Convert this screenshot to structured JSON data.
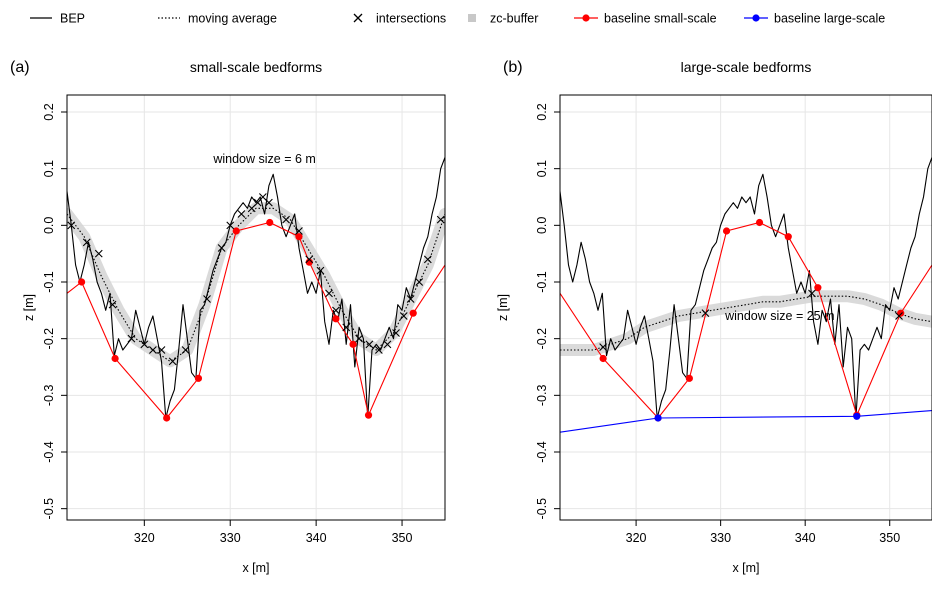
{
  "legend": [
    {
      "key": "bep",
      "label": "BEP",
      "symbol": "line",
      "color": "#000000"
    },
    {
      "key": "ma",
      "label": "moving average",
      "symbol": "dotted",
      "color": "#000000"
    },
    {
      "key": "int",
      "label": "intersections",
      "symbol": "cross",
      "color": "#000000"
    },
    {
      "key": "zc",
      "label": "zc-buffer",
      "symbol": "square",
      "color": "#c8c8c8"
    },
    {
      "key": "bss",
      "label": "baseline small-scale",
      "symbol": "dot-line",
      "color": "#ff0000"
    },
    {
      "key": "bls",
      "label": "baseline large-scale",
      "symbol": "dot-line",
      "color": "#0000ff"
    }
  ],
  "colors": {
    "bep": "#000000",
    "moving_average": "#000000",
    "zc_buffer": "#d3d3d3",
    "baseline_small": "#ff0000",
    "baseline_large": "#0000ff",
    "grid": "#e6e6e6"
  },
  "chart_data": [
    {
      "type": "line",
      "panel_label": "(a)",
      "title": "small-scale bedforms",
      "xlabel": "x [m]",
      "ylabel": "z [m]",
      "xlim": [
        311,
        355
      ],
      "ylim": [
        -0.52,
        0.23
      ],
      "xticks": [
        320,
        330,
        340,
        350
      ],
      "yticks": [
        0.2,
        0.1,
        0.0,
        -0.1,
        -0.2,
        -0.3,
        -0.4,
        -0.5
      ],
      "grid": true,
      "annotation": {
        "text": "window size = 6 m",
        "x": 334,
        "y": 0.11
      },
      "series": [
        {
          "name": "BEP",
          "x": [
            311.0,
            311.5,
            312.0,
            312.5,
            313.0,
            313.5,
            314.0,
            314.5,
            315.0,
            315.5,
            316.0,
            316.5,
            317.0,
            317.5,
            318.0,
            318.5,
            319.0,
            319.5,
            320.0,
            320.5,
            321.0,
            321.5,
            322.0,
            322.5,
            323.0,
            323.5,
            324.0,
            324.5,
            325.0,
            325.5,
            326.0,
            326.5,
            327.0,
            327.5,
            328.0,
            328.5,
            329.0,
            329.5,
            330.0,
            330.5,
            331.0,
            331.5,
            332.0,
            332.5,
            333.0,
            333.5,
            334.0,
            334.5,
            335.0,
            335.5,
            336.0,
            336.5,
            337.0,
            337.5,
            338.0,
            338.5,
            339.0,
            339.5,
            340.0,
            340.5,
            341.0,
            341.5,
            342.0,
            342.5,
            343.0,
            343.5,
            344.0,
            344.5,
            345.0,
            345.5,
            346.0,
            346.5,
            347.0,
            347.5,
            348.0,
            348.5,
            349.0,
            349.5,
            350.0,
            350.5,
            351.0,
            351.5,
            352.0,
            352.5,
            353.0,
            353.5,
            354.0,
            354.5,
            355.0
          ],
          "values": [
            0.06,
            0.0,
            -0.07,
            -0.1,
            -0.07,
            -0.03,
            -0.06,
            -0.1,
            -0.12,
            -0.15,
            -0.12,
            -0.23,
            -0.2,
            -0.22,
            -0.21,
            -0.2,
            -0.15,
            -0.18,
            -0.21,
            -0.18,
            -0.16,
            -0.2,
            -0.24,
            -0.34,
            -0.31,
            -0.29,
            -0.22,
            -0.14,
            -0.2,
            -0.26,
            -0.27,
            -0.15,
            -0.14,
            -0.11,
            -0.08,
            -0.06,
            -0.04,
            -0.03,
            0.0,
            0.02,
            0.03,
            0.04,
            0.03,
            0.05,
            0.04,
            0.05,
            0.02,
            0.07,
            0.09,
            0.05,
            0.0,
            -0.02,
            0.0,
            0.02,
            -0.04,
            -0.08,
            -0.12,
            -0.1,
            -0.12,
            -0.08,
            -0.17,
            -0.21,
            -0.15,
            -0.17,
            -0.13,
            -0.21,
            -0.14,
            -0.25,
            -0.18,
            -0.2,
            -0.34,
            -0.22,
            -0.21,
            -0.22,
            -0.2,
            -0.18,
            -0.2,
            -0.14,
            -0.15,
            -0.11,
            -0.13,
            -0.1,
            -0.07,
            -0.04,
            -0.02,
            0.02,
            0.05,
            0.1,
            0.12
          ]
        },
        {
          "name": "moving average",
          "x": [
            311,
            313,
            315,
            317,
            319,
            321,
            323,
            325,
            327,
            329,
            331,
            333,
            335,
            337,
            339,
            341,
            343,
            345,
            347,
            349,
            351,
            353,
            355
          ],
          "values": [
            0.02,
            -0.02,
            -0.09,
            -0.15,
            -0.2,
            -0.22,
            -0.24,
            -0.22,
            -0.14,
            -0.04,
            0.0,
            0.03,
            0.03,
            0.01,
            -0.04,
            -0.09,
            -0.15,
            -0.2,
            -0.22,
            -0.19,
            -0.13,
            -0.07,
            0.02
          ]
        },
        {
          "name": "intersections",
          "x": [
            311.5,
            313.3,
            314.7,
            316.3,
            318.5,
            320.0,
            321.0,
            322.0,
            323.3,
            324.8,
            327.3,
            329.0,
            330.0,
            331.3,
            332.5,
            333.2,
            333.8,
            334.5,
            336.5,
            338.0,
            339.2,
            340.5,
            341.5,
            342.3,
            343.5,
            345.0,
            346.2,
            347.3,
            348.3,
            349.3,
            350.2,
            351.0,
            352.0,
            353.0,
            354.5
          ],
          "values": [
            0.0,
            -0.03,
            -0.05,
            -0.14,
            -0.2,
            -0.21,
            -0.22,
            -0.22,
            -0.24,
            -0.22,
            -0.13,
            -0.04,
            0.0,
            0.02,
            0.03,
            0.04,
            0.05,
            0.04,
            0.01,
            -0.01,
            -0.06,
            -0.08,
            -0.12,
            -0.15,
            -0.18,
            -0.2,
            -0.21,
            -0.22,
            -0.21,
            -0.19,
            -0.16,
            -0.13,
            -0.1,
            -0.06,
            0.01
          ]
        },
        {
          "name": "baseline small-scale",
          "x": [
            311,
            312.7,
            316.6,
            322.6,
            326.3,
            330.7,
            334.6,
            338.0,
            339.2,
            342.3,
            344.3,
            346.1,
            351.3,
            355
          ],
          "values": [
            -0.12,
            -0.1,
            -0.235,
            -0.34,
            -0.27,
            -0.01,
            0.005,
            -0.02,
            -0.065,
            -0.165,
            -0.21,
            -0.335,
            -0.155,
            -0.07
          ]
        }
      ]
    },
    {
      "type": "line",
      "panel_label": "(b)",
      "title": "large-scale bedforms",
      "xlabel": "x [m]",
      "ylabel": "z [m]",
      "xlim": [
        311,
        355
      ],
      "ylim": [
        -0.52,
        0.23
      ],
      "xticks": [
        320,
        330,
        340,
        350
      ],
      "yticks": [
        0.2,
        0.1,
        0.0,
        -0.1,
        -0.2,
        -0.3,
        -0.4,
        -0.5
      ],
      "grid": true,
      "annotation": {
        "text": "window size = 25 m",
        "x": 337,
        "y": -0.167
      },
      "series": [
        {
          "name": "BEP",
          "x": [
            311.0,
            311.5,
            312.0,
            312.5,
            313.0,
            313.5,
            314.0,
            314.5,
            315.0,
            315.5,
            316.0,
            316.5,
            317.0,
            317.5,
            318.0,
            318.5,
            319.0,
            319.5,
            320.0,
            320.5,
            321.0,
            321.5,
            322.0,
            322.5,
            323.0,
            323.5,
            324.0,
            324.5,
            325.0,
            325.5,
            326.0,
            326.5,
            327.0,
            327.5,
            328.0,
            328.5,
            329.0,
            329.5,
            330.0,
            330.5,
            331.0,
            331.5,
            332.0,
            332.5,
            333.0,
            333.5,
            334.0,
            334.5,
            335.0,
            335.5,
            336.0,
            336.5,
            337.0,
            337.5,
            338.0,
            338.5,
            339.0,
            339.5,
            340.0,
            340.5,
            341.0,
            341.5,
            342.0,
            342.5,
            343.0,
            343.5,
            344.0,
            344.5,
            345.0,
            345.5,
            346.0,
            346.5,
            347.0,
            347.5,
            348.0,
            348.5,
            349.0,
            349.5,
            350.0,
            350.5,
            351.0,
            351.5,
            352.0,
            352.5,
            353.0,
            353.5,
            354.0,
            354.5,
            355.0
          ],
          "values": [
            0.06,
            0.0,
            -0.07,
            -0.1,
            -0.07,
            -0.03,
            -0.06,
            -0.1,
            -0.12,
            -0.15,
            -0.12,
            -0.23,
            -0.2,
            -0.22,
            -0.21,
            -0.2,
            -0.15,
            -0.18,
            -0.21,
            -0.18,
            -0.16,
            -0.2,
            -0.24,
            -0.34,
            -0.31,
            -0.29,
            -0.22,
            -0.14,
            -0.2,
            -0.26,
            -0.27,
            -0.15,
            -0.14,
            -0.11,
            -0.08,
            -0.06,
            -0.04,
            -0.03,
            0.0,
            0.02,
            0.03,
            0.04,
            0.03,
            0.05,
            0.04,
            0.05,
            0.02,
            0.07,
            0.09,
            0.05,
            0.0,
            -0.02,
            0.0,
            0.02,
            -0.04,
            -0.08,
            -0.12,
            -0.1,
            -0.12,
            -0.08,
            -0.17,
            -0.21,
            -0.15,
            -0.17,
            -0.13,
            -0.21,
            -0.14,
            -0.25,
            -0.18,
            -0.2,
            -0.34,
            -0.22,
            -0.21,
            -0.22,
            -0.2,
            -0.18,
            -0.2,
            -0.14,
            -0.15,
            -0.11,
            -0.13,
            -0.1,
            -0.07,
            -0.04,
            -0.02,
            0.02,
            0.05,
            0.1,
            0.12
          ]
        },
        {
          "name": "moving average",
          "x": [
            311,
            313,
            315,
            317,
            319,
            321,
            323,
            325,
            327,
            329,
            331,
            333,
            335,
            337,
            339,
            341,
            343,
            345,
            347,
            349,
            351,
            353,
            355
          ],
          "values": [
            -0.22,
            -0.22,
            -0.22,
            -0.21,
            -0.2,
            -0.18,
            -0.17,
            -0.16,
            -0.155,
            -0.15,
            -0.145,
            -0.14,
            -0.135,
            -0.135,
            -0.13,
            -0.125,
            -0.125,
            -0.125,
            -0.13,
            -0.14,
            -0.155,
            -0.165,
            -0.17
          ]
        },
        {
          "name": "intersections",
          "x": [
            316.1,
            328.2,
            340.8,
            351.1
          ],
          "values": [
            -0.215,
            -0.155,
            -0.12,
            -0.16
          ]
        },
        {
          "name": "baseline small-scale",
          "x": [
            311,
            316.1,
            322.6,
            326.3,
            330.7,
            334.6,
            338.0,
            341.5,
            346.1,
            351.3,
            355
          ],
          "values": [
            -0.12,
            -0.235,
            -0.34,
            -0.27,
            -0.01,
            0.005,
            -0.02,
            -0.11,
            -0.335,
            -0.155,
            -0.07
          ]
        },
        {
          "name": "baseline large-scale",
          "x": [
            311,
            322.6,
            346.1,
            355
          ],
          "values": [
            -0.365,
            -0.34,
            -0.337,
            -0.327
          ]
        }
      ]
    }
  ]
}
